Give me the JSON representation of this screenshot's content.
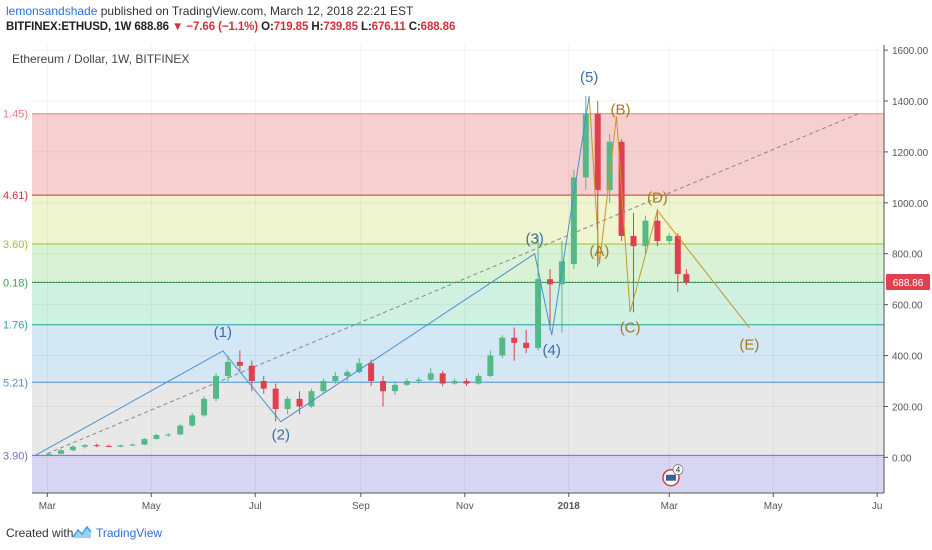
{
  "header": {
    "author": "lemonsandshade",
    "published": " published on TradingView.com, March 12, 2018 22:21 EST",
    "symbol": "BITFINEX:ETHUSD, 1W",
    "last": "688.86",
    "change": "▼ −7.66 (−1.1%)",
    "o_label": "O:",
    "o_val": "719.85",
    "h_label": "H:",
    "h_val": "739.85",
    "l_label": "L:",
    "l_val": "676.11",
    "c_label": "C:",
    "c_val": "688.86"
  },
  "footer": {
    "created_with": "Created with",
    "brand": "TradingView"
  },
  "chart_data": {
    "type": "candlestick",
    "title": "Ethereum / Dollar, 1W, BITFINEX",
    "ylim": [
      -140,
      1620
    ],
    "y_ticks": [
      "1600.00",
      "1400.00",
      "1200.00",
      "1000.00",
      "800.00",
      "600.00",
      "400.00",
      "200.00",
      "0.00"
    ],
    "y_tick_values": [
      1600,
      1400,
      1200,
      1000,
      800,
      600,
      400,
      200,
      0
    ],
    "x_ticks": [
      "Mar",
      "May",
      "Jul",
      "Sep",
      "Nov",
      "2018",
      "Mar",
      "May",
      "Ju"
    ],
    "x_tick_values": [
      "2017-03-01",
      "2017-05-01",
      "2017-07-01",
      "2017-09-01",
      "2017-11-01",
      "2018-01-01",
      "2018-03-01",
      "2018-05-01",
      "2018-07-01"
    ],
    "x_range": [
      "2017-02-20",
      "2018-07-05"
    ],
    "last_price_label": "688.86",
    "last_price": 688.86,
    "colors": {
      "up": "#53b987",
      "down": "#e0404e",
      "impulse": "#4a8fd0",
      "corrective": "#c7962a"
    },
    "fib_labels": [
      {
        "text": "1.45)",
        "price": 1350,
        "color": "#e08080"
      },
      {
        "text": "4.61)",
        "price": 1030,
        "color": "#d3303a"
      },
      {
        "text": "3.60)",
        "price": 838,
        "color": "#9bbf3a"
      },
      {
        "text": "0.18)",
        "price": 687,
        "color": "#3aa35a"
      },
      {
        "text": "1.76)",
        "price": 521,
        "color": "#29a0a8"
      },
      {
        "text": "5.21)",
        "price": 295,
        "color": "#4a90d0"
      },
      {
        "text": "3.90)",
        "price": 8,
        "color": "#7a6cc8"
      }
    ],
    "fib_bands": [
      {
        "from": 1350,
        "to": 1030,
        "color": "#f6d0d0"
      },
      {
        "from": 1030,
        "to": 838,
        "color": "#eef5cf"
      },
      {
        "from": 838,
        "to": 687,
        "color": "#d9f2d6"
      },
      {
        "from": 687,
        "to": 521,
        "color": "#d0f1e2"
      },
      {
        "from": 521,
        "to": 295,
        "color": "#d3e7f5"
      },
      {
        "from": 295,
        "to": 8,
        "color": "#e8e8e8"
      },
      {
        "from": 8,
        "to": -140,
        "color": "#d7d6f3"
      }
    ],
    "impulse_waves": [
      {
        "label": "(1)",
        "date": "2017-06-12",
        "price": 418
      },
      {
        "label": "(2)",
        "date": "2017-07-16",
        "price": 140
      },
      {
        "label": "(3)",
        "date": "2017-12-12",
        "price": 800
      },
      {
        "label": "(4)",
        "date": "2017-12-22",
        "price": 480
      },
      {
        "label": "(5)",
        "date": "2018-01-13",
        "price": 1420
      }
    ],
    "corrective_waves": [
      {
        "label": "(A)",
        "date": "2018-01-19",
        "price": 760
      },
      {
        "label": "(B)",
        "date": "2018-01-29",
        "price": 1340
      },
      {
        "label": "(C)",
        "date": "2018-02-06",
        "price": 570
      },
      {
        "label": "(D)",
        "date": "2018-02-22",
        "price": 970
      },
      {
        "label": "(E)",
        "date": "2018-04-17",
        "price": 510
      }
    ],
    "wave_start": {
      "date": "2017-02-22",
      "price": 8
    },
    "trendline": [
      {
        "date": "2017-03-01",
        "price": 15
      },
      {
        "date": "2018-06-20",
        "price": 1350
      }
    ],
    "event_badge": "4",
    "candles": [
      {
        "d": "2017-03-02",
        "o": 10,
        "h": 18,
        "l": 5,
        "c": 14
      },
      {
        "d": "2017-03-09",
        "o": 14,
        "h": 32,
        "l": 12,
        "c": 28
      },
      {
        "d": "2017-03-16",
        "o": 28,
        "h": 48,
        "l": 25,
        "c": 42
      },
      {
        "d": "2017-03-23",
        "o": 42,
        "h": 52,
        "l": 35,
        "c": 48
      },
      {
        "d": "2017-03-30",
        "o": 48,
        "h": 54,
        "l": 40,
        "c": 45
      },
      {
        "d": "2017-04-06",
        "o": 45,
        "h": 50,
        "l": 40,
        "c": 42
      },
      {
        "d": "2017-04-13",
        "o": 42,
        "h": 50,
        "l": 40,
        "c": 47
      },
      {
        "d": "2017-04-20",
        "o": 47,
        "h": 55,
        "l": 45,
        "c": 50
      },
      {
        "d": "2017-04-27",
        "o": 50,
        "h": 76,
        "l": 48,
        "c": 72
      },
      {
        "d": "2017-05-04",
        "o": 72,
        "h": 92,
        "l": 70,
        "c": 88
      },
      {
        "d": "2017-05-11",
        "o": 88,
        "h": 95,
        "l": 80,
        "c": 90
      },
      {
        "d": "2017-05-18",
        "o": 90,
        "h": 130,
        "l": 88,
        "c": 125
      },
      {
        "d": "2017-05-25",
        "o": 125,
        "h": 175,
        "l": 120,
        "c": 165
      },
      {
        "d": "2017-06-01",
        "o": 165,
        "h": 240,
        "l": 160,
        "c": 230
      },
      {
        "d": "2017-06-08",
        "o": 230,
        "h": 330,
        "l": 220,
        "c": 320
      },
      {
        "d": "2017-06-15",
        "o": 320,
        "h": 400,
        "l": 300,
        "c": 375
      },
      {
        "d": "2017-06-22",
        "o": 375,
        "h": 420,
        "l": 340,
        "c": 360
      },
      {
        "d": "2017-06-29",
        "o": 360,
        "h": 380,
        "l": 260,
        "c": 300
      },
      {
        "d": "2017-07-06",
        "o": 300,
        "h": 320,
        "l": 250,
        "c": 270
      },
      {
        "d": "2017-07-13",
        "o": 270,
        "h": 290,
        "l": 140,
        "c": 190
      },
      {
        "d": "2017-07-20",
        "o": 190,
        "h": 240,
        "l": 170,
        "c": 230
      },
      {
        "d": "2017-07-27",
        "o": 230,
        "h": 260,
        "l": 170,
        "c": 200
      },
      {
        "d": "2017-08-03",
        "o": 200,
        "h": 270,
        "l": 195,
        "c": 260
      },
      {
        "d": "2017-08-10",
        "o": 260,
        "h": 310,
        "l": 250,
        "c": 300
      },
      {
        "d": "2017-08-17",
        "o": 300,
        "h": 335,
        "l": 290,
        "c": 320
      },
      {
        "d": "2017-08-24",
        "o": 320,
        "h": 345,
        "l": 300,
        "c": 335
      },
      {
        "d": "2017-08-31",
        "o": 335,
        "h": 390,
        "l": 330,
        "c": 370
      },
      {
        "d": "2017-09-07",
        "o": 370,
        "h": 385,
        "l": 280,
        "c": 300
      },
      {
        "d": "2017-09-14",
        "o": 300,
        "h": 320,
        "l": 200,
        "c": 260
      },
      {
        "d": "2017-09-21",
        "o": 260,
        "h": 300,
        "l": 245,
        "c": 285
      },
      {
        "d": "2017-09-28",
        "o": 285,
        "h": 310,
        "l": 280,
        "c": 300
      },
      {
        "d": "2017-10-05",
        "o": 300,
        "h": 315,
        "l": 290,
        "c": 305
      },
      {
        "d": "2017-10-12",
        "o": 305,
        "h": 350,
        "l": 300,
        "c": 330
      },
      {
        "d": "2017-10-19",
        "o": 330,
        "h": 340,
        "l": 280,
        "c": 290
      },
      {
        "d": "2017-10-26",
        "o": 290,
        "h": 310,
        "l": 285,
        "c": 300
      },
      {
        "d": "2017-11-02",
        "o": 300,
        "h": 310,
        "l": 280,
        "c": 290
      },
      {
        "d": "2017-11-09",
        "o": 290,
        "h": 330,
        "l": 285,
        "c": 320
      },
      {
        "d": "2017-11-16",
        "o": 320,
        "h": 420,
        "l": 315,
        "c": 400
      },
      {
        "d": "2017-11-23",
        "o": 400,
        "h": 480,
        "l": 390,
        "c": 470
      },
      {
        "d": "2017-11-30",
        "o": 470,
        "h": 510,
        "l": 380,
        "c": 450
      },
      {
        "d": "2017-12-07",
        "o": 450,
        "h": 500,
        "l": 410,
        "c": 430
      },
      {
        "d": "2017-12-14",
        "o": 430,
        "h": 870,
        "l": 420,
        "c": 700
      },
      {
        "d": "2017-12-21",
        "o": 700,
        "h": 740,
        "l": 500,
        "c": 680
      },
      {
        "d": "2017-12-28",
        "o": 680,
        "h": 850,
        "l": 490,
        "c": 770
      },
      {
        "d": "2018-01-04",
        "o": 760,
        "h": 1130,
        "l": 740,
        "c": 1100
      },
      {
        "d": "2018-01-11",
        "o": 1100,
        "h": 1420,
        "l": 1050,
        "c": 1350
      },
      {
        "d": "2018-01-18",
        "o": 1350,
        "h": 1400,
        "l": 750,
        "c": 1050
      },
      {
        "d": "2018-01-25",
        "o": 1050,
        "h": 1270,
        "l": 1000,
        "c": 1240
      },
      {
        "d": "2018-02-01",
        "o": 1240,
        "h": 1250,
        "l": 850,
        "c": 870
      },
      {
        "d": "2018-02-08",
        "o": 870,
        "h": 960,
        "l": 570,
        "c": 830
      },
      {
        "d": "2018-02-15",
        "o": 830,
        "h": 950,
        "l": 800,
        "c": 930
      },
      {
        "d": "2018-02-22",
        "o": 930,
        "h": 975,
        "l": 830,
        "c": 850
      },
      {
        "d": "2018-03-01",
        "o": 850,
        "h": 880,
        "l": 840,
        "c": 870
      },
      {
        "d": "2018-03-06",
        "o": 870,
        "h": 880,
        "l": 650,
        "c": 720
      },
      {
        "d": "2018-03-11",
        "o": 719.85,
        "h": 739.85,
        "l": 676.11,
        "c": 688.86
      }
    ]
  }
}
